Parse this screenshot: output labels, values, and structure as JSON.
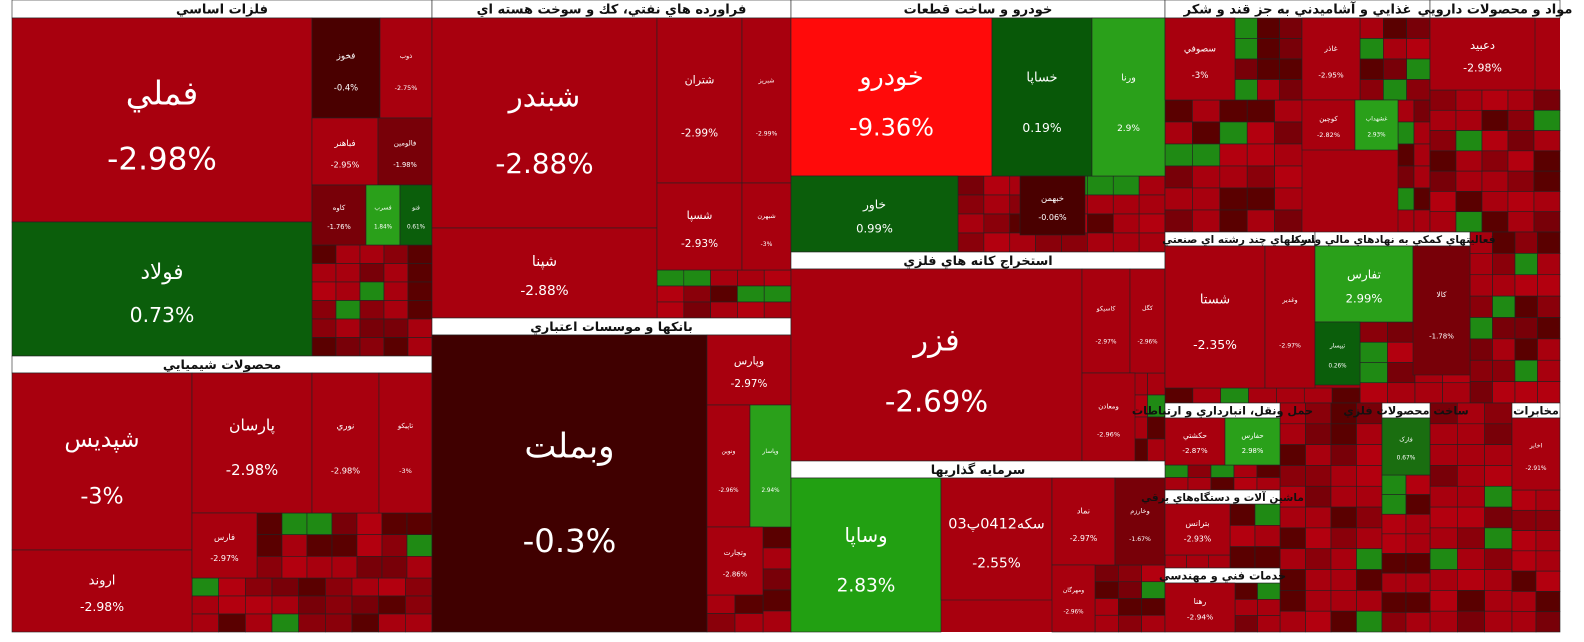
{
  "sectors": [
    {
      "title": "فلزات اساسي",
      "tiles": [
        {
          "name": "فملي",
          "change": "-2.98%",
          "color": "#a8000e"
        },
        {
          "name": "فولاد",
          "change": "0.73%",
          "color": "#0b5e0b"
        },
        {
          "name": "فخوز",
          "change": "-0.4%",
          "color": "#4a0000"
        },
        {
          "name": "ذوب",
          "change": "-2.75%",
          "color": "#a8000e"
        },
        {
          "name": "فباهنر",
          "change": "-2.95%",
          "color": "#a8000e"
        },
        {
          "name": "فالومين",
          "change": "-1.98%",
          "color": "#780008"
        },
        {
          "name": "کاوه",
          "change": "-1.76%",
          "color": "#780008"
        },
        {
          "name": "فسرب",
          "change": "1.84%",
          "color": "#2aa01a"
        },
        {
          "name": "فنو",
          "change": "0.61%",
          "color": "#0b5e0b"
        }
      ]
    },
    {
      "title": "محصولات شيميايي",
      "tiles": [
        {
          "name": "شپديس",
          "change": "-3%",
          "color": "#a8000e"
        },
        {
          "name": "اروند",
          "change": "-2.98%",
          "color": "#a8000e"
        },
        {
          "name": "پارسان",
          "change": "-2.98%",
          "color": "#a8000e"
        },
        {
          "name": "نوري",
          "change": "-2.98%",
          "color": "#a8000e"
        },
        {
          "name": "تاپيکو",
          "change": "-3%",
          "color": "#a8000e"
        },
        {
          "name": "فارس",
          "change": "-2.97%",
          "color": "#a8000e"
        }
      ]
    },
    {
      "title": "فراورده هاي نفتي، كك و سوخت هسته اي",
      "tiles": [
        {
          "name": "شبندر",
          "change": "-2.88%",
          "color": "#a8000e"
        },
        {
          "name": "شپنا",
          "change": "-2.88%",
          "color": "#a8000e"
        },
        {
          "name": "شتران",
          "change": "-2.99%",
          "color": "#a8000e"
        },
        {
          "name": "شبريز",
          "change": "-2.99%",
          "color": "#a8000e"
        },
        {
          "name": "شسپا",
          "change": "-2.93%",
          "color": "#a8000e"
        },
        {
          "name": "شبهرن",
          "change": "-3%",
          "color": "#a8000e"
        }
      ]
    },
    {
      "title": "بانکها و موسسات اعتباري",
      "tiles": [
        {
          "name": "وبملت",
          "change": "-0.3%",
          "color": "#400000"
        },
        {
          "name": "وپارس",
          "change": "-2.97%",
          "color": "#a8000e"
        },
        {
          "name": "ونوين",
          "change": "-2.96%",
          "color": "#a8000e"
        },
        {
          "name": "وپاسار",
          "change": "2.94%",
          "color": "#2aa01a"
        },
        {
          "name": "وتجارت",
          "change": "-2.86%",
          "color": "#a8000e"
        }
      ]
    },
    {
      "title": "خودرو و ساخت قطعات",
      "tiles": [
        {
          "name": "خودرو",
          "change": "-9.36%",
          "color": "#ff0a0a"
        },
        {
          "name": "خساپا",
          "change": "0.19%",
          "color": "#085808"
        },
        {
          "name": "ورنا",
          "change": "2.9%",
          "color": "#2aa01a"
        },
        {
          "name": "خاور",
          "change": "0.99%",
          "color": "#0b5e0b"
        },
        {
          "name": "خبهمن",
          "change": "-0.06%",
          "color": "#4a0000"
        }
      ]
    },
    {
      "title": "استخراج کانه هاي فلزي",
      "tiles": [
        {
          "name": "فزر",
          "change": "-2.69%",
          "color": "#a8000e"
        },
        {
          "name": "کاسيکو",
          "change": "-2.97%",
          "color": "#a8000e"
        },
        {
          "name": "کگل",
          "change": "-2.96%",
          "color": "#a8000e"
        },
        {
          "name": "ومعادن",
          "change": "-2.96%",
          "color": "#a8000e"
        }
      ]
    },
    {
      "title": "سرمايه گذاريها",
      "tiles": [
        {
          "name": "وساپا",
          "change": "2.83%",
          "color": "#22a012"
        },
        {
          "name": "سکه0412پ03",
          "change": "-2.55%",
          "color": "#a8000e"
        },
        {
          "name": "نماد",
          "change": "-2.97%",
          "color": "#a8000e"
        },
        {
          "name": "وخارزم",
          "change": "-1.67%",
          "color": "#780008"
        },
        {
          "name": "ومهرگان",
          "change": "-2.96%",
          "color": "#a8000e"
        }
      ]
    },
    {
      "title": "غذايي و آشاميدني به جز قند و شکر",
      "tiles": [
        {
          "name": "سصوفي",
          "change": "-3%",
          "color": "#a8000e"
        },
        {
          "name": "غاذر",
          "change": "-2.95%",
          "color": "#a8000e"
        },
        {
          "name": "کوچين",
          "change": "-2.82%",
          "color": "#a8000e"
        },
        {
          "name": "غشهداب",
          "change": "2.93%",
          "color": "#2aa01a"
        }
      ]
    },
    {
      "title": "مواد و محصولات دارويي",
      "tiles": [
        {
          "name": "دعبيد",
          "change": "-2.98%",
          "color": "#a8000e"
        }
      ]
    },
    {
      "title": "شرکتهاي چند رشته اي صنعتي",
      "tiles": [
        {
          "name": "شستا",
          "change": "-2.35%",
          "color": "#a8000e"
        },
        {
          "name": "وغدير",
          "change": "-2.97%",
          "color": "#a8000e"
        }
      ]
    },
    {
      "title": "فعاليتهاي کمکي به نهادهاي مالي واسط",
      "tiles": [
        {
          "name": "تفارس",
          "change": "2.99%",
          "color": "#2aa01a"
        },
        {
          "name": "تيپسار",
          "change": "0.26%",
          "color": "#0b5e0b"
        },
        {
          "name": "کالا",
          "change": "-1.78%",
          "color": "#780008"
        }
      ]
    },
    {
      "title": "حمل ونقل، انبارداري و ارتباطات",
      "tiles": [
        {
          "name": "حکشتي",
          "change": "-2.87%",
          "color": "#a8000e"
        },
        {
          "name": "حفارس",
          "change": "2.98%",
          "color": "#2aa01a"
        }
      ]
    },
    {
      "title": "ماشين آلات و دستگاه‌هاي برقي",
      "tiles": [
        {
          "name": "بترانس",
          "change": "-2.93%",
          "color": "#a8000e"
        }
      ]
    },
    {
      "title": "خدمات فني و مهندسي",
      "tiles": [
        {
          "name": "رهنا",
          "change": "-2.94%",
          "color": "#a8000e"
        }
      ]
    },
    {
      "title": "ساخت محصولات فلزي",
      "tiles": [
        {
          "name": "فارک",
          "change": "0.67%",
          "color": "#1a6e10"
        }
      ]
    },
    {
      "title": "مخابرات",
      "tiles": [
        {
          "name": "اخابر",
          "change": "-2.91%",
          "color": "#a8000e"
        }
      ]
    }
  ]
}
